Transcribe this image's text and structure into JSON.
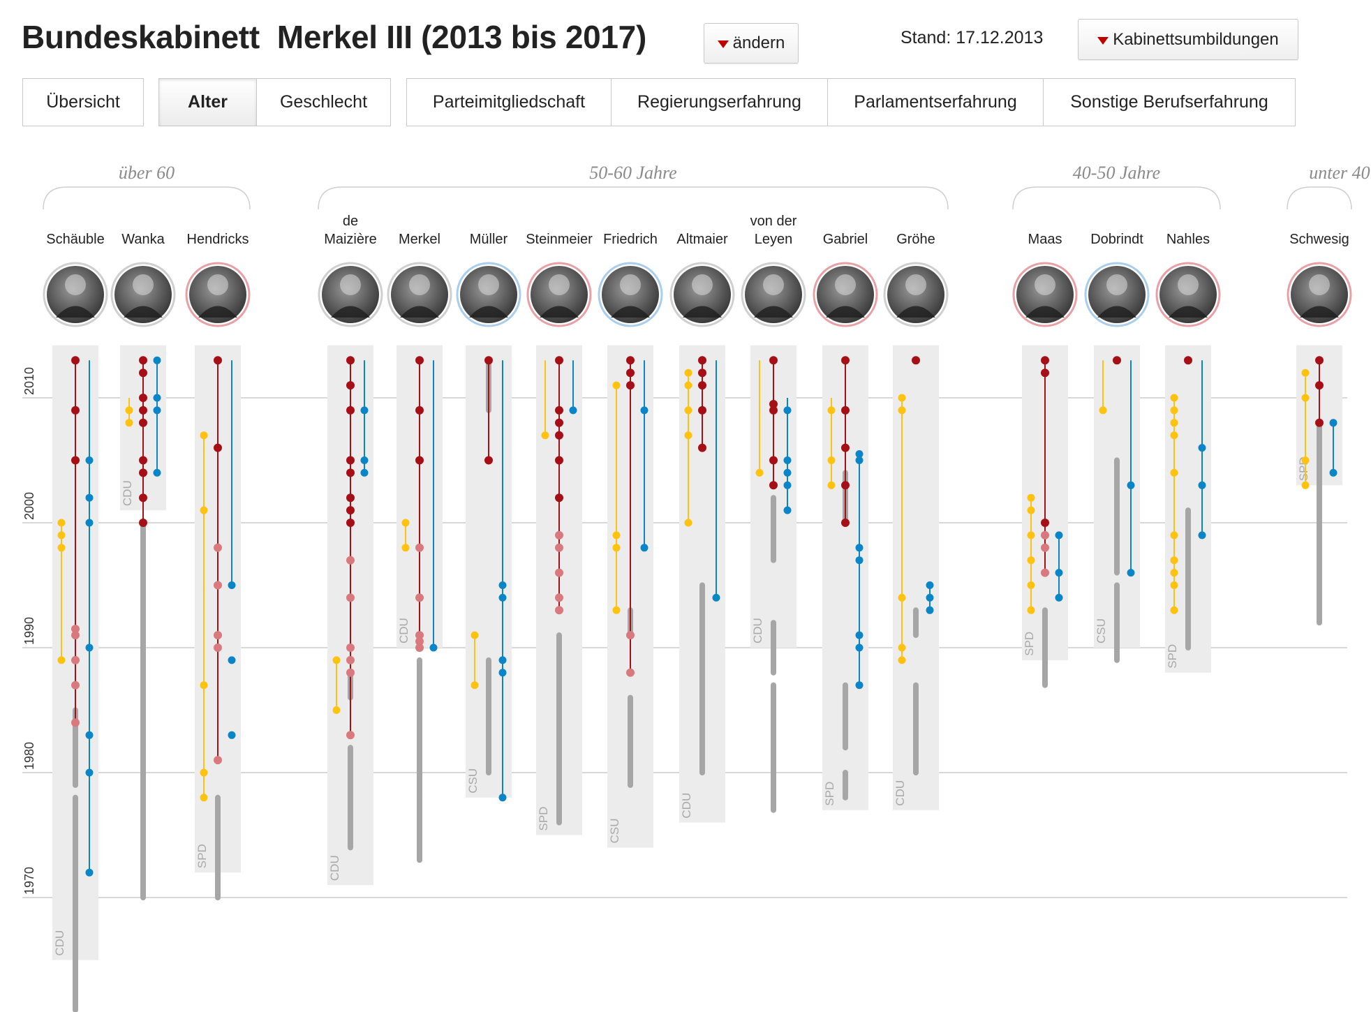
{
  "header": {
    "title": "Bundeskabinett  Merkel III (2013 bis 2017)",
    "change_button": "ändern",
    "stand": "Stand: 17.12.2013",
    "reshuffle_button": "Kabinettsumbildungen"
  },
  "tabs": [
    {
      "label": "Übersicht",
      "active": false
    },
    {
      "label": "Alter",
      "active": true
    },
    {
      "label": "Geschlecht",
      "active": false
    },
    {
      "label": "Parteimitgliedschaft",
      "active": false
    },
    {
      "label": "Regierungserfahrung",
      "active": false
    },
    {
      "label": "Parlamentserfahrung",
      "active": false
    },
    {
      "label": "Sonstige Berufserfahrung",
      "active": false
    }
  ],
  "colors": {
    "party_office": "#ffc20e",
    "government_office": "#a50f15",
    "government_office_light": "#d9797d",
    "parliament": "#0a85c7",
    "career": "#a6a6a6",
    "background_band": "#ececec",
    "grid": "#cccccc",
    "photo_ring_cdu": "#cfcfcf",
    "photo_ring_spd": "#e8a0a5",
    "photo_ring_csu": "#a9cdec"
  },
  "chart_data": {
    "type": "timeline",
    "title": "",
    "xlabel": "",
    "ylabel": "",
    "y_ticks": [
      1970,
      1980,
      1990,
      2000,
      2010
    ],
    "ylim": [
      1960,
      2015
    ],
    "grid": true,
    "groups": [
      {
        "label": "über 60",
        "members": [
          "Schäuble",
          "Wanka",
          "Hendricks"
        ]
      },
      {
        "label": "50-60 Jahre",
        "members": [
          "de Maizière",
          "Merkel",
          "Müller",
          "Steinmeier",
          "Friedrich",
          "Altmaier",
          "von der Leyen",
          "Gabriel",
          "Gröhe"
        ]
      },
      {
        "label": "40-50 Jahre",
        "members": [
          "Maas",
          "Dobrindt",
          "Nahles"
        ]
      },
      {
        "label": "unter 40",
        "members": [
          "Schwesig"
        ]
      }
    ],
    "series_legend": [
      "party_office",
      "government_office",
      "parliament",
      "career"
    ],
    "members": [
      {
        "name": "Schäuble",
        "party": "CDU",
        "party_since": 1965,
        "party_office": {
          "span": [
            1989,
            2000
          ],
          "dots": [
            1989,
            1998,
            1999,
            2000
          ]
        },
        "government": {
          "span": [
            1984,
            2013
          ],
          "dots": [
            1984,
            1987,
            1989,
            1991,
            1991.5,
            2005,
            2009,
            2013
          ]
        },
        "parliament": {
          "span": [
            1972,
            2013
          ],
          "dots": [
            1972,
            1980,
            1983,
            1990,
            2000,
            2002,
            2005
          ]
        },
        "career": [
          [
            1969,
            1972
          ],
          [
            1972,
            1978
          ],
          [
            1979,
            1985
          ],
          [
            1961,
            1969
          ]
        ]
      },
      {
        "name": "Wanka",
        "party": "CDU",
        "party_since": 2001,
        "party_office": {
          "span": [
            2008,
            2010
          ],
          "dots": [
            2008,
            2009
          ]
        },
        "government": {
          "span": [
            2000,
            2013
          ],
          "dots": [
            2000,
            2002,
            2004,
            2005,
            2008,
            2009,
            2010,
            2012,
            2013
          ]
        },
        "parliament": {
          "span": [
            2004,
            2013
          ],
          "dots": [
            2004,
            2009,
            2010,
            2013
          ]
        },
        "career": [
          [
            1970,
            1974
          ],
          [
            1974,
            1993
          ],
          [
            1993,
            2000
          ]
        ]
      },
      {
        "name": "Hendricks",
        "party": "SPD",
        "party_since": 1972,
        "party_office": {
          "span": [
            1978,
            2007
          ],
          "dots": [
            1978,
            1980,
            1987,
            2001,
            2007
          ]
        },
        "government": {
          "span": [
            1981,
            2013
          ],
          "dots": [
            1981,
            1990,
            1991,
            1995,
            1998,
            2006,
            2013
          ]
        },
        "parliament": {
          "span": [
            1995,
            2013
          ],
          "dots": [
            1995,
            1983,
            1989
          ]
        },
        "career": [
          [
            1970,
            1976
          ],
          [
            1976,
            1978
          ]
        ]
      },
      {
        "name": "de Maizière",
        "party": "CDU",
        "party_since": 1971,
        "party_office": {
          "span": [
            1985,
            1989
          ],
          "dots": [
            1985,
            1989
          ]
        },
        "government": {
          "span": [
            1983,
            2013
          ],
          "dots": [
            1983,
            1988,
            1989,
            1990,
            1994,
            1997,
            2000,
            2001,
            2002,
            2004,
            2005,
            2009,
            2011,
            2013
          ]
        },
        "parliament": {
          "span": [
            2004,
            2013
          ],
          "dots": [
            2004,
            2005,
            2009
          ]
        },
        "career": [
          [
            1974,
            1982
          ],
          [
            1986,
            1988
          ]
        ]
      },
      {
        "name": "Merkel",
        "party": "CDU",
        "party_since": 1990,
        "party_office": {
          "span": [
            1998,
            2000
          ],
          "dots": [
            1998,
            2000
          ]
        },
        "government": {
          "span": [
            1990,
            2013
          ],
          "dots": [
            1990,
            1990.5,
            1991,
            1994,
            1998,
            2005,
            2009,
            2013
          ]
        },
        "parliament": {
          "span": [
            1990,
            2013
          ],
          "dots": [
            1990
          ]
        },
        "career": [
          [
            1978,
            1989
          ],
          [
            1973,
            1978
          ]
        ]
      },
      {
        "name": "Müller",
        "party": "CSU",
        "party_since": 1978,
        "party_office": {
          "span": [
            1987,
            1991
          ],
          "dots": [
            1987,
            1991
          ]
        },
        "government": {
          "span": [
            2005,
            2013
          ],
          "dots": [
            2005,
            2013
          ]
        },
        "parliament": {
          "span": [
            1978,
            2013
          ],
          "dots": [
            1978,
            1988,
            1989,
            1994,
            1995
          ]
        },
        "career": [
          [
            1980,
            1989
          ],
          [
            2009,
            2013
          ]
        ]
      },
      {
        "name": "Steinmeier",
        "party": "SPD",
        "party_since": 1975,
        "party_office": {
          "span": [
            2007,
            2013
          ],
          "dots": [
            2007
          ]
        },
        "government": {
          "span": [
            1993,
            2013
          ],
          "dots": [
            1993,
            1994,
            1996,
            1998,
            1999,
            2002,
            2005,
            2007,
            2008,
            2009,
            2013
          ]
        },
        "parliament": {
          "span": [
            2009,
            2013
          ],
          "dots": [
            2009
          ]
        },
        "career": [
          [
            1976,
            1986
          ],
          [
            1986,
            1991
          ]
        ]
      },
      {
        "name": "Friedrich",
        "party": "CSU",
        "party_since": 1974,
        "party_office": {
          "span": [
            1993,
            2011
          ],
          "dots": [
            1993,
            1998,
            1999,
            2011
          ]
        },
        "government": {
          "span": [
            1988,
            2013
          ],
          "dots": [
            1988,
            1991,
            2011,
            2012,
            2013
          ]
        },
        "parliament": {
          "span": [
            1998,
            2013
          ],
          "dots": [
            1998,
            2009
          ]
        },
        "career": [
          [
            1979,
            1986
          ],
          [
            1991,
            1993
          ]
        ]
      },
      {
        "name": "Altmaier",
        "party": "CDU",
        "party_since": 1976,
        "party_office": {
          "span": [
            2000,
            2012
          ],
          "dots": [
            2000,
            2007,
            2009,
            2011,
            2012
          ]
        },
        "government": {
          "span": [
            2006,
            2013
          ],
          "dots": [
            2006,
            2009,
            2011,
            2012,
            2013
          ]
        },
        "parliament": {
          "span": [
            1994,
            2013
          ],
          "dots": [
            1994
          ]
        },
        "career": [
          [
            1980,
            1988
          ],
          [
            1988,
            1995
          ]
        ]
      },
      {
        "name": "von der Leyen",
        "party": "CDU",
        "party_since": 1990,
        "party_office": {
          "span": [
            2004,
            2013
          ],
          "dots": [
            2004
          ]
        },
        "government": {
          "span": [
            2003,
            2013
          ],
          "dots": [
            2003,
            2005,
            2009,
            2009.5,
            2013
          ]
        },
        "parliament": {
          "span": [
            2001,
            2010
          ],
          "dots": [
            2001,
            2003,
            2004,
            2005,
            2009
          ]
        },
        "career": [
          [
            1977,
            1980
          ],
          [
            1980,
            1987
          ],
          [
            1988,
            1992
          ],
          [
            1997,
            2002
          ]
        ]
      },
      {
        "name": "Gabriel",
        "party": "SPD",
        "party_since": 1977,
        "party_office": {
          "span": [
            2003,
            2010
          ],
          "dots": [
            2003,
            2005,
            2009
          ]
        },
        "government": {
          "span": [
            2000,
            2013
          ],
          "dots": [
            2000,
            2003,
            2006,
            2009,
            2013
          ]
        },
        "parliament": {
          "span": [
            1987,
            2005
          ],
          "dots": [
            1987,
            1990,
            1991,
            1997,
            1998,
            2005,
            2005.5
          ]
        },
        "career": [
          [
            1978,
            1980
          ],
          [
            1982,
            1987
          ],
          [
            2000,
            2004
          ]
        ]
      },
      {
        "name": "Gröhe",
        "party": "CDU",
        "party_since": 1977,
        "party_office": {
          "span": [
            1989,
            2010
          ],
          "dots": [
            1989,
            1990,
            1994,
            2009,
            2010
          ]
        },
        "government": {
          "span": [
            2013,
            2013
          ],
          "dots": [
            2013
          ]
        },
        "parliament": {
          "span": [
            1993,
            1995
          ],
          "dots": [
            1993,
            1994,
            1995
          ]
        },
        "career": [
          [
            1980,
            1987
          ],
          [
            1991,
            1993
          ]
        ]
      },
      {
        "name": "Maas",
        "party": "SPD",
        "party_since": 1989,
        "party_office": {
          "span": [
            1993,
            2002
          ],
          "dots": [
            1993,
            1995,
            1997,
            1999,
            2001,
            2002
          ]
        },
        "government": {
          "span": [
            1996,
            2013
          ],
          "dots": [
            1996,
            1998,
            1999,
            2000,
            2012,
            2013
          ]
        },
        "parliament": {
          "span": [
            1994,
            1999
          ],
          "dots": [
            1994,
            1996,
            1999
          ]
        },
        "career": [
          [
            1988,
            1993
          ],
          [
            1987,
            1989
          ]
        ]
      },
      {
        "name": "Dobrindt",
        "party": "CSU",
        "party_since": 1990,
        "party_office": {
          "span": [
            2009,
            2013
          ],
          "dots": [
            2009
          ]
        },
        "government": {
          "span": [
            2013,
            2013
          ],
          "dots": [
            2013
          ]
        },
        "parliament": {
          "span": [
            1996,
            2013
          ],
          "dots": [
            1996,
            2003
          ]
        },
        "career": [
          [
            1996,
            2005
          ],
          [
            1989,
            1995
          ]
        ]
      },
      {
        "name": "Nahles",
        "party": "SPD",
        "party_since": 1988,
        "party_office": {
          "span": [
            1993,
            2010
          ],
          "dots": [
            1993,
            1995,
            1996,
            1997,
            1999,
            2004,
            2007,
            2008,
            2009,
            2010
          ]
        },
        "government": {
          "span": [
            2013,
            2013
          ],
          "dots": [
            2013
          ]
        },
        "parliament": {
          "span": [
            1999,
            2013
          ],
          "dots": [
            1999,
            2003,
            2006
          ]
        },
        "career": [
          [
            1990,
            2001
          ]
        ]
      },
      {
        "name": "Schwesig",
        "party": "SPD",
        "party_since": 2003,
        "party_office": {
          "span": [
            2003,
            2012
          ],
          "dots": [
            2003,
            2005,
            2010,
            2012
          ]
        },
        "government": {
          "span": [
            2008,
            2013
          ],
          "dots": [
            2008,
            2011,
            2013
          ]
        },
        "parliament": {
          "span": [
            2004,
            2008
          ],
          "dots": [
            2004,
            2008
          ]
        },
        "career": [
          [
            1992,
            2008
          ]
        ]
      }
    ]
  }
}
